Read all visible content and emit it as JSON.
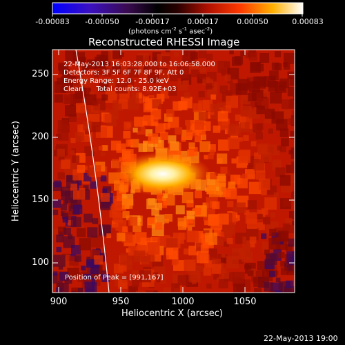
{
  "colorbar": {
    "ticks": [
      "-0.00083",
      "-0.00050",
      "-0.00017",
      "0.00017",
      "0.00050",
      "0.00083"
    ],
    "units_main": "(photons cm",
    "units_exp1": "-2",
    "units_mid": " s",
    "units_exp2": "-1",
    "units_mid2": " asec",
    "units_exp3": "-2",
    "units_close": ")"
  },
  "title": "Reconstructed RHESSI Image",
  "annotations": {
    "time_range": "22-May-2013 16:03:28.000 to 16:06:58.000",
    "detectors": "Detectors: 3F 5F 6F 7F 8F 9F, Att 0",
    "energy": "Energy Range: 12.0 - 25.0 keV",
    "clean": "Clean      Total counts: 8.92E+03",
    "peak": "Position of Peak = [991,167]"
  },
  "axes": {
    "xlabel": "Heliocentric X (arcsec)",
    "ylabel": "Heliocentric Y (arcsec)",
    "xticks": [
      "900",
      "950",
      "1000",
      "1050"
    ],
    "yticks": [
      "250",
      "200",
      "150",
      "100"
    ]
  },
  "footer_timestamp": "22-May-2013 19:00",
  "icons": [
    "limb-line"
  ],
  "colors": {
    "background": "#000000",
    "text": "#ffffff"
  }
}
